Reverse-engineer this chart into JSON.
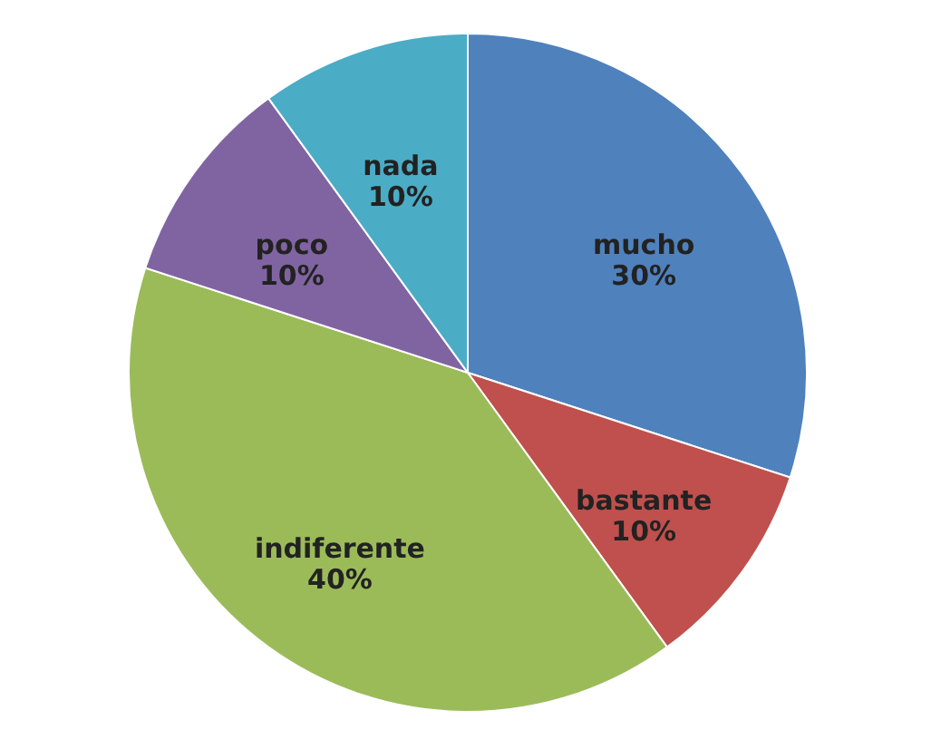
{
  "chart_data": {
    "type": "pie",
    "categories": [
      "mucho",
      "bastante",
      "indiferente",
      "poco",
      "nada"
    ],
    "values": [
      30,
      10,
      40,
      10,
      10
    ],
    "value_labels": [
      "30%",
      "10%",
      "40%",
      "10%",
      "10%"
    ],
    "colors": [
      "#4f81bd",
      "#c0504d",
      "#9bbb59",
      "#8064a2",
      "#4bacc6"
    ],
    "legend": false
  }
}
